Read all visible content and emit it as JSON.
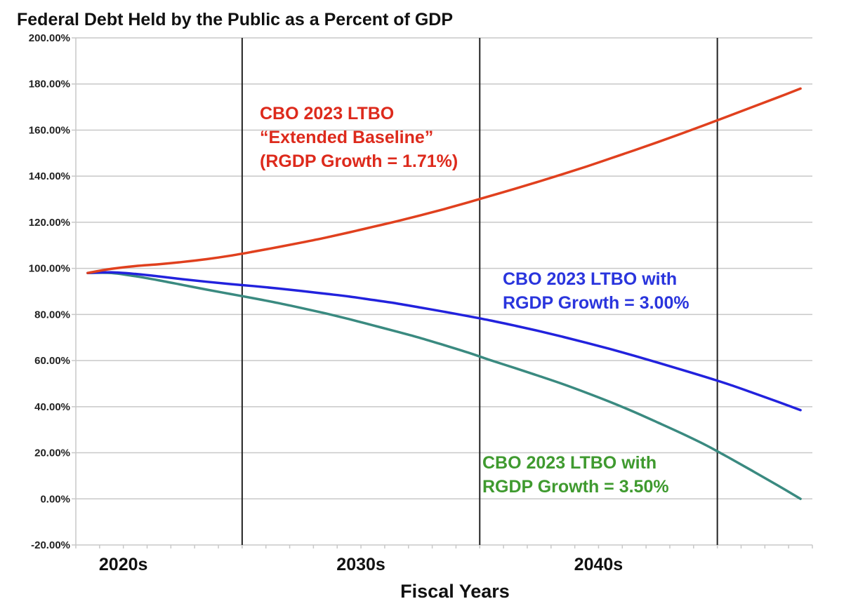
{
  "chart_data": {
    "type": "line",
    "title": "Federal Debt Held by the Public as a Percent of GDP",
    "xlabel": "Fiscal Years",
    "ylabel": "",
    "ylim": [
      -20,
      200
    ],
    "xlim": [
      2022.5,
      2053.5
    ],
    "grid": true,
    "y_ticks": [
      {
        "value": 200,
        "label": "200.00%"
      },
      {
        "value": 180,
        "label": "180.00%"
      },
      {
        "value": 160,
        "label": "160.00%"
      },
      {
        "value": 140,
        "label": "140.00%"
      },
      {
        "value": 120,
        "label": "120.00%"
      },
      {
        "value": 100,
        "label": "100.00%"
      },
      {
        "value": 80,
        "label": "80.00%"
      },
      {
        "value": 60,
        "label": "60.00%"
      },
      {
        "value": 40,
        "label": "40.00%"
      },
      {
        "value": 20,
        "label": "20.00%"
      },
      {
        "value": 0,
        "label": "0.00%"
      },
      {
        "value": -20,
        "label": "-20.00%"
      }
    ],
    "x_tick_labels": [
      {
        "at": 2024.5,
        "label": "2020s"
      },
      {
        "at": 2034.5,
        "label": "2030s"
      },
      {
        "at": 2044.5,
        "label": "2040s"
      }
    ],
    "decade_dividers": [
      2029.5,
      2039.5,
      2049.5
    ],
    "x": [
      2023,
      2024,
      2025,
      2026,
      2027,
      2028,
      2029,
      2030,
      2031,
      2032,
      2033,
      2034,
      2035,
      2036,
      2037,
      2038,
      2039,
      2040,
      2041,
      2042,
      2043,
      2044,
      2045,
      2046,
      2047,
      2048,
      2049,
      2050,
      2051,
      2052,
      2053
    ],
    "series": [
      {
        "name": "CBO 2023 LTBO “Extended Baseline” (RGDP Growth = 1.71%)",
        "color": "#e0401e",
        "values": [
          98,
          99.8,
          101,
          101.8,
          102.8,
          104,
          105.5,
          107.3,
          109.2,
          111.2,
          113.3,
          115.6,
          118.0,
          120.4,
          123.0,
          125.7,
          128.6,
          131.6,
          134.6,
          137.7,
          140.9,
          144.2,
          147.7,
          151.2,
          154.8,
          158.5,
          162.3,
          166.2,
          170.1,
          174.0,
          178.0
        ]
      },
      {
        "name": "CBO 2023 LTBO with RGDP Growth = 3.00%",
        "color": "#2222dd",
        "values": [
          98,
          98.3,
          97.6,
          96.5,
          95.3,
          94.2,
          93.2,
          92.3,
          91.3,
          90.2,
          89.0,
          87.8,
          86.3,
          84.8,
          83.0,
          81.2,
          79.3,
          77.3,
          75.1,
          72.8,
          70.3,
          67.7,
          65.0,
          62.1,
          59.1,
          56.0,
          52.9,
          49.6,
          46.0,
          42.3,
          38.5
        ]
      },
      {
        "name": "CBO 2023 LTBO with RGDP Growth = 3.50%",
        "color": "#3a8a80",
        "values": [
          98,
          98,
          96.6,
          94.8,
          92.8,
          90.8,
          88.9,
          87.0,
          85.0,
          82.8,
          80.5,
          78.0,
          75.3,
          72.6,
          69.8,
          66.7,
          63.5,
          60.0,
          56.7,
          53.3,
          49.8,
          46.0,
          42.0,
          37.7,
          33.1,
          28.4,
          23.4,
          17.8,
          12.0,
          6.1,
          0.0
        ]
      }
    ],
    "annotations": [
      {
        "series": 0,
        "color": "#dd2a1c",
        "lines": [
          "CBO 2023 LTBO",
          "“Extended Baseline”",
          "(RGDP Growth = 1.71%)"
        ]
      },
      {
        "series": 1,
        "color": "#2a35dd",
        "lines": [
          "CBO 2023 LTBO with",
          "RGDP Growth = 3.00%"
        ]
      },
      {
        "series": 2,
        "color": "#3f9a2f",
        "lines": [
          "CBO 2023 LTBO with",
          "RGDP Growth = 3.50%"
        ]
      }
    ]
  }
}
